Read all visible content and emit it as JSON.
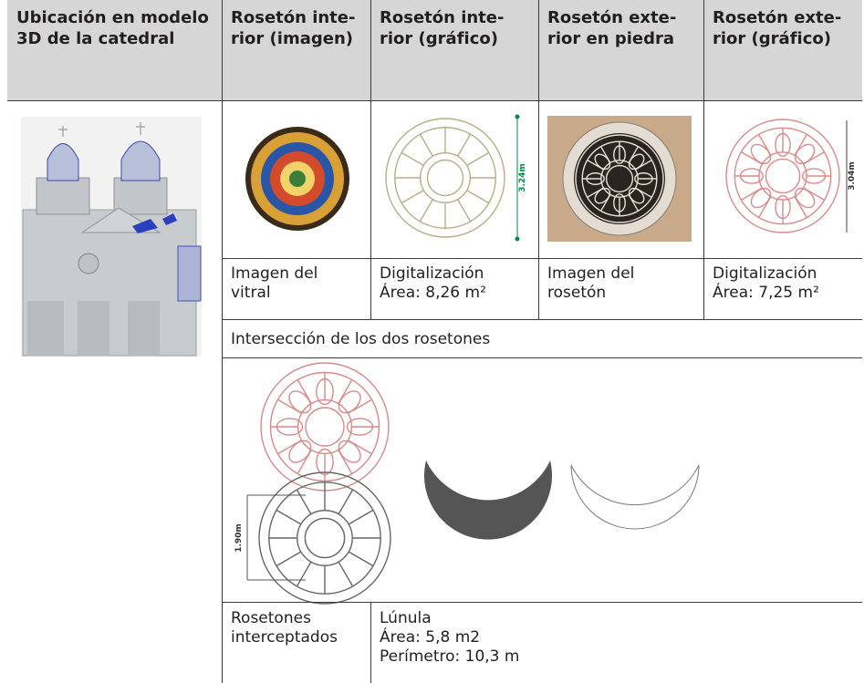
{
  "table": {
    "header": [
      "Ubicación en modelo 3D de la catedral",
      "Rosetón inte­rior (imagen)",
      "Rosetón inte­rior (gráfico)",
      "Rosetón exte­rior en piedra",
      "Rosetón exte­rior (gráfico)"
    ],
    "captions": [
      [
        "Imagen del",
        "vitral"
      ],
      [
        "Digitalización",
        "Área: 8,26 m²"
      ],
      [
        "Imagen del",
        "rosetón"
      ],
      [
        "Digitalización",
        "Área: 7,25 m²"
      ]
    ],
    "intersection_title": "Intersección de los dos rosetones",
    "bottom_captions": [
      [
        "Rosetones",
        "interceptados"
      ],
      [
        "Lúnula",
        "Área: 5,8 m2",
        "Perímetro: 10,3 m"
      ]
    ],
    "figure_labels": [
      "3.24m",
      "3.04m",
      "1.90m"
    ]
  }
}
